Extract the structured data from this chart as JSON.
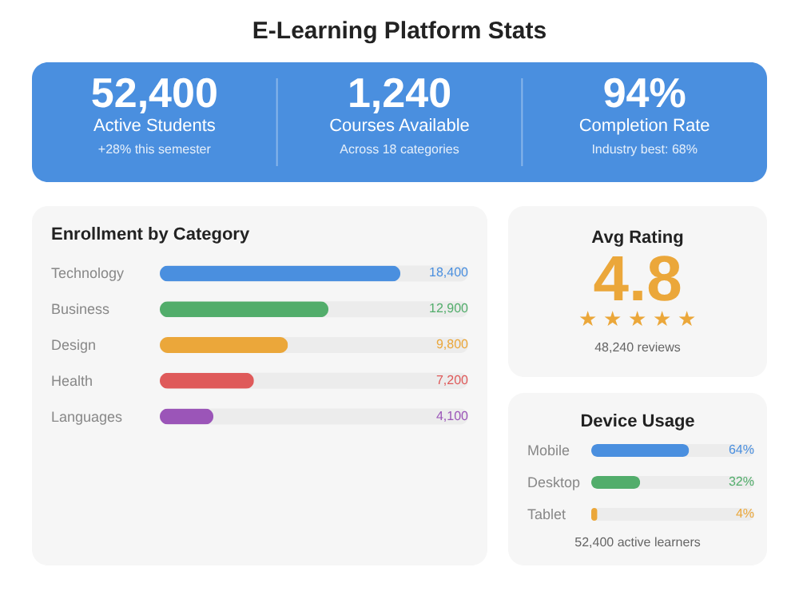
{
  "chart_data": [
    {
      "type": "other",
      "title": "E-Learning Platform Stats",
      "color": "#4a8fdf",
      "annotations": [
        "52,400",
        "Active Students",
        "+28% this semester",
        "1,240",
        "Courses Available",
        "Across 18 categories",
        "94%",
        "Completion Rate",
        "Industry best: 68%"
      ]
    },
    {
      "type": "bar",
      "orientation": "horizontal",
      "title": "Enrollment by Category",
      "categories": [
        "Technology",
        "Business",
        "Design",
        "Health",
        "Languages"
      ],
      "values": [
        18400,
        12900,
        9800,
        7200,
        4100
      ],
      "colors": [
        "#4a8fdf",
        "#52ad6b",
        "#eba73a",
        "#df5a5a",
        "#9b55b8"
      ],
      "value_labels": [
        "18,400",
        "12,900",
        "9,800",
        "7,200",
        "4,100"
      ]
    },
    {
      "type": "other",
      "title": "Avg Rating",
      "color": "#eba73a",
      "annotations": [
        "4.8",
        "★ ★ ★ ★ ★",
        "48,240 reviews"
      ]
    },
    {
      "type": "bar",
      "orientation": "horizontal",
      "title": "Device Usage",
      "categories": [
        "Mobile",
        "Desktop",
        "Tablet"
      ],
      "values": [
        64,
        32,
        4
      ],
      "value_labels": [
        "64%",
        "32%",
        "4%"
      ],
      "colors": [
        "#4a8fdf",
        "#52ad6b",
        "#eba73a"
      ],
      "annotations": [
        "52,400 active learners"
      ]
    }
  ]
}
